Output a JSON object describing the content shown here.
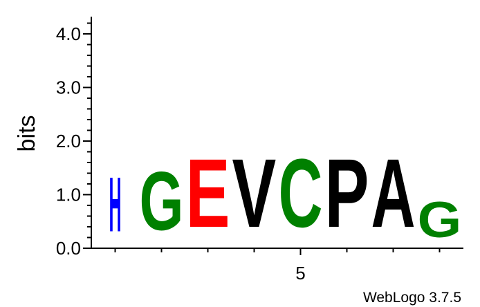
{
  "chart_data": {
    "type": "sequence-logo",
    "ylabel": "bits",
    "ylim": [
      0,
      4.32
    ],
    "y_ticks": [
      "0.0",
      "1.0",
      "2.0",
      "3.0",
      "4.0"
    ],
    "x_tick_labels": [
      {
        "position": 5,
        "label": "5"
      }
    ],
    "positions": [
      {
        "position": 1,
        "letters": [
          {
            "char": "H",
            "bits": 1.62,
            "color": "#0000ff"
          }
        ]
      },
      {
        "position": 2,
        "letters": [
          {
            "char": "G",
            "bits": 1.75,
            "color": "#008000"
          }
        ]
      },
      {
        "position": 3,
        "letters": [
          {
            "char": "E",
            "bits": 2.04,
            "color": "#ff0000"
          }
        ]
      },
      {
        "position": 4,
        "letters": [
          {
            "char": "V",
            "bits": 2.04,
            "color": "#000000"
          }
        ]
      },
      {
        "position": 5,
        "letters": [
          {
            "char": "C",
            "bits": 2.04,
            "color": "#008000"
          }
        ]
      },
      {
        "position": 6,
        "letters": [
          {
            "char": "P",
            "bits": 2.04,
            "color": "#000000"
          }
        ]
      },
      {
        "position": 7,
        "letters": [
          {
            "char": "A",
            "bits": 2.04,
            "color": "#000000"
          }
        ]
      },
      {
        "position": 8,
        "letters": [
          {
            "char": "G",
            "bits": 1.06,
            "color": "#008000"
          }
        ]
      }
    ],
    "grid": false
  },
  "footer": {
    "credit": "WebLogo 3.7.5"
  }
}
